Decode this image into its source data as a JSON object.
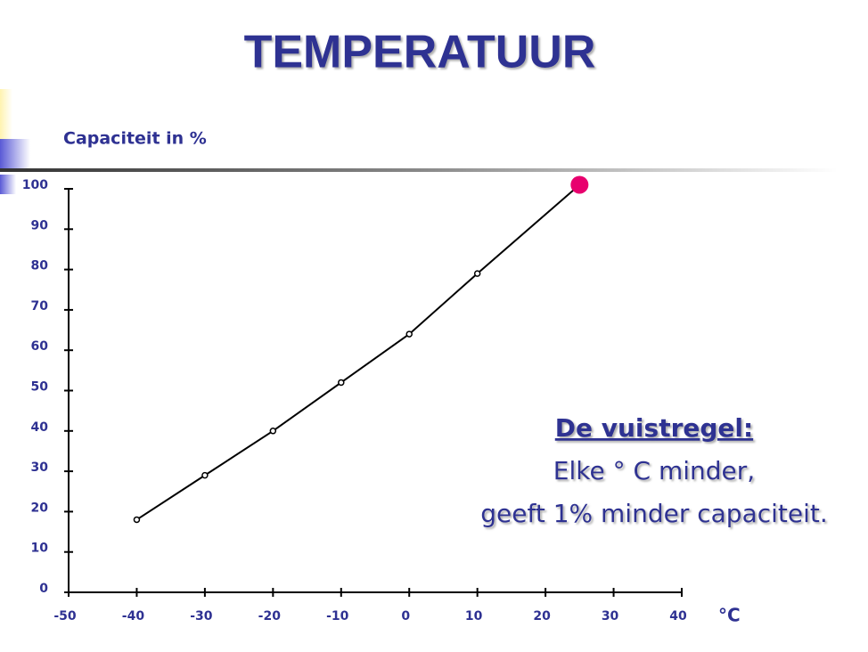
{
  "chart_data": {
    "type": "line",
    "title": "TEMPERATUUR",
    "y_label": "Capaciteit in %",
    "x_label": "°C",
    "x": [
      -40,
      -30,
      -20,
      -10,
      0,
      10,
      25
    ],
    "series": [
      {
        "color": "#000000",
        "values": [
          18,
          29,
          40,
          52,
          64,
          79,
          101
        ]
      }
    ],
    "end_marker_color": "#e8006e",
    "xlim": [
      -50,
      40
    ],
    "xticks": [
      -50,
      -40,
      -30,
      -20,
      -10,
      0,
      10,
      20,
      30,
      40
    ],
    "ylim": [
      0,
      100
    ],
    "yticks": [
      0,
      10,
      20,
      30,
      40,
      50,
      60,
      70,
      80,
      90,
      100
    ],
    "annotations": [
      "De vuistregel:",
      "Elke ° C minder,",
      "geeft 1% minder capaciteit."
    ]
  }
}
